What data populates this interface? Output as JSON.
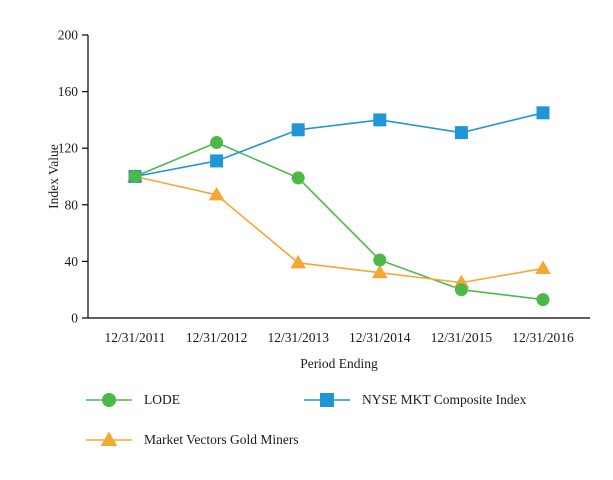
{
  "chart_data": {
    "type": "line",
    "title": "",
    "xlabel": "Period Ending",
    "ylabel": "Index Value",
    "ylim": [
      0,
      200
    ],
    "yticks": [
      0,
      40,
      80,
      120,
      160,
      200
    ],
    "categories": [
      "12/31/2011",
      "12/31/2012",
      "12/31/2013",
      "12/31/2014",
      "12/31/2015",
      "12/31/2016"
    ],
    "series": [
      {
        "name": "LODE",
        "marker": "circle",
        "color": "#4cb848",
        "values": [
          100,
          124,
          99,
          41,
          20,
          13
        ]
      },
      {
        "name": "NYSE MKT Composite Index",
        "marker": "square",
        "color": "#2196d6",
        "values": [
          100,
          111,
          133,
          140,
          131,
          145
        ]
      },
      {
        "name": "Market Vectors Gold Miners",
        "marker": "triangle",
        "color": "#f5a733",
        "values": [
          100,
          87,
          39,
          32,
          25,
          35
        ]
      }
    ],
    "grid": false,
    "legend_position": "bottom",
    "axis_color": "#000000"
  }
}
